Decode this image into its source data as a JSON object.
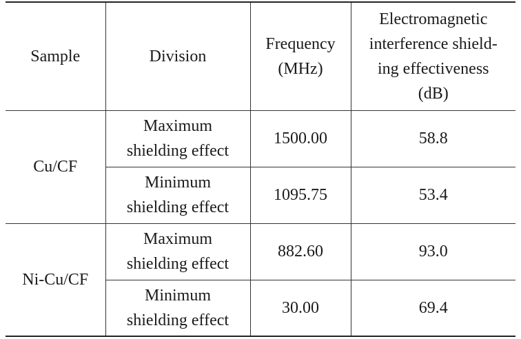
{
  "headers": {
    "sample": "Sample",
    "division": "Division",
    "frequency": "Frequency\n(MHz)",
    "emi": "Electromagnetic\ninterference shield-\ning effectiveness\n(dB)"
  },
  "groups": [
    {
      "sample": "Cu/CF",
      "rows": [
        {
          "division": "Maximum\nshielding effect",
          "frequency": "1500.00",
          "emi": "58.8"
        },
        {
          "division": "Minimum\nshielding effect",
          "frequency": "1095.75",
          "emi": "53.4"
        }
      ]
    },
    {
      "sample": "Ni-Cu/CF",
      "rows": [
        {
          "division": "Maximum\nshielding effect",
          "frequency": "882.60",
          "emi": "93.0"
        },
        {
          "division": "Minimum\nshielding effect",
          "frequency": "30.00",
          "emi": "69.4"
        }
      ]
    }
  ]
}
